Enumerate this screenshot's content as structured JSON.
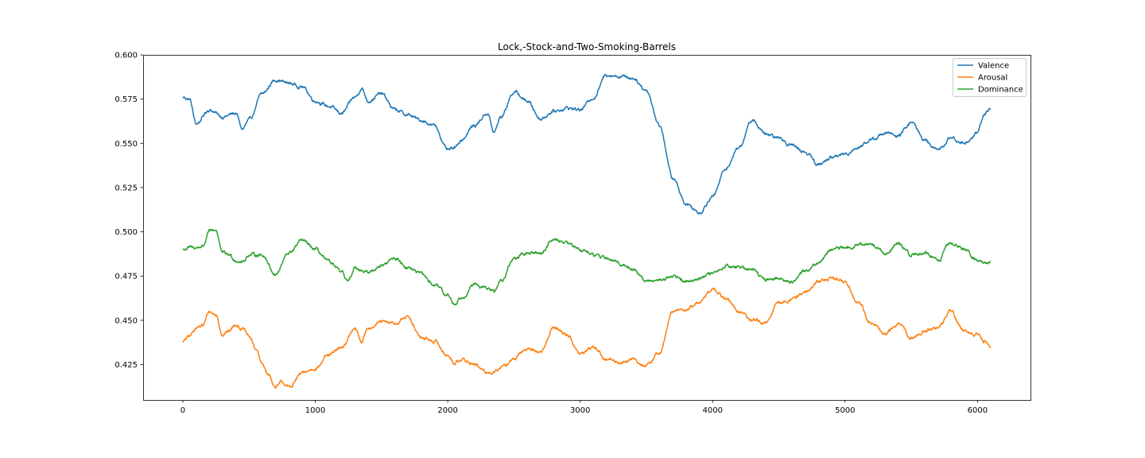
{
  "chart_data": {
    "type": "line",
    "title": "Lock,-Stock-and-Two-Smoking-Barrels",
    "xlabel": "",
    "ylabel": "",
    "xlim": [
      -300,
      6400
    ],
    "ylim": [
      0.405,
      0.6
    ],
    "x_ticks": [
      0,
      1000,
      2000,
      3000,
      4000,
      5000,
      6000
    ],
    "x_tick_labels": [
      "0",
      "1000",
      "2000",
      "3000",
      "4000",
      "5000",
      "6000"
    ],
    "y_ticks": [
      0.425,
      0.45,
      0.475,
      0.5,
      0.525,
      0.55,
      0.575,
      0.6
    ],
    "y_tick_labels": [
      "0.425",
      "0.450",
      "0.475",
      "0.500",
      "0.525",
      "0.550",
      "0.575",
      "0.600"
    ],
    "grid": false,
    "legend_position": "top-right",
    "series": [
      {
        "name": "Valence",
        "color": "#1f77b4",
        "x": [
          0,
          50,
          100,
          200,
          300,
          400,
          450,
          500,
          600,
          700,
          800,
          900,
          1000,
          1100,
          1200,
          1300,
          1350,
          1400,
          1500,
          1600,
          1700,
          1800,
          1900,
          2000,
          2050,
          2100,
          2200,
          2300,
          2350,
          2400,
          2500,
          2600,
          2700,
          2800,
          2900,
          3000,
          3100,
          3200,
          3300,
          3400,
          3500,
          3600,
          3700,
          3800,
          3900,
          4000,
          4100,
          4200,
          4300,
          4400,
          4500,
          4600,
          4700,
          4800,
          4900,
          5000,
          5100,
          5200,
          5300,
          5400,
          5500,
          5600,
          5700,
          5800,
          5900,
          6000,
          6050,
          6100
        ],
        "y": [
          0.576,
          0.575,
          0.561,
          0.569,
          0.565,
          0.567,
          0.558,
          0.563,
          0.578,
          0.586,
          0.584,
          0.582,
          0.574,
          0.571,
          0.567,
          0.576,
          0.581,
          0.574,
          0.578,
          0.569,
          0.566,
          0.563,
          0.56,
          0.546,
          0.547,
          0.552,
          0.56,
          0.567,
          0.556,
          0.565,
          0.579,
          0.574,
          0.564,
          0.568,
          0.57,
          0.569,
          0.576,
          0.589,
          0.588,
          0.587,
          0.58,
          0.56,
          0.53,
          0.516,
          0.511,
          0.52,
          0.536,
          0.548,
          0.563,
          0.555,
          0.553,
          0.549,
          0.545,
          0.538,
          0.542,
          0.544,
          0.548,
          0.552,
          0.556,
          0.554,
          0.562,
          0.552,
          0.546,
          0.553,
          0.55,
          0.556,
          0.566,
          0.57
        ]
      },
      {
        "name": "Arousal",
        "color": "#ff7f0e",
        "x": [
          0,
          50,
          100,
          150,
          200,
          250,
          300,
          350,
          400,
          450,
          500,
          550,
          600,
          650,
          700,
          750,
          800,
          900,
          1000,
          1100,
          1200,
          1300,
          1350,
          1400,
          1500,
          1600,
          1700,
          1800,
          1900,
          2000,
          2050,
          2100,
          2200,
          2300,
          2400,
          2500,
          2600,
          2700,
          2800,
          2900,
          3000,
          3100,
          3200,
          3300,
          3400,
          3500,
          3600,
          3700,
          3800,
          3900,
          4000,
          4100,
          4200,
          4300,
          4400,
          4500,
          4600,
          4700,
          4800,
          4900,
          5000,
          5100,
          5200,
          5300,
          5400,
          5500,
          5600,
          5700,
          5800,
          5900,
          6000,
          6050,
          6100
        ],
        "y": [
          0.438,
          0.441,
          0.446,
          0.447,
          0.455,
          0.453,
          0.442,
          0.444,
          0.448,
          0.445,
          0.441,
          0.434,
          0.425,
          0.419,
          0.412,
          0.415,
          0.412,
          0.42,
          0.423,
          0.43,
          0.435,
          0.445,
          0.438,
          0.446,
          0.449,
          0.448,
          0.452,
          0.44,
          0.438,
          0.43,
          0.426,
          0.428,
          0.425,
          0.42,
          0.423,
          0.428,
          0.434,
          0.432,
          0.446,
          0.442,
          0.431,
          0.435,
          0.428,
          0.426,
          0.428,
          0.424,
          0.432,
          0.455,
          0.456,
          0.46,
          0.468,
          0.462,
          0.455,
          0.45,
          0.448,
          0.46,
          0.462,
          0.466,
          0.472,
          0.474,
          0.472,
          0.46,
          0.448,
          0.442,
          0.448,
          0.44,
          0.444,
          0.446,
          0.455,
          0.443,
          0.442,
          0.438,
          0.435
        ]
      },
      {
        "name": "Dominance",
        "color": "#2ca02c",
        "x": [
          0,
          50,
          100,
          150,
          200,
          250,
          300,
          350,
          400,
          450,
          500,
          600,
          700,
          800,
          900,
          1000,
          1100,
          1200,
          1250,
          1300,
          1400,
          1500,
          1600,
          1700,
          1800,
          1900,
          2000,
          2050,
          2100,
          2200,
          2300,
          2350,
          2400,
          2500,
          2600,
          2700,
          2800,
          2900,
          3000,
          3100,
          3200,
          3300,
          3400,
          3500,
          3600,
          3700,
          3800,
          3900,
          4000,
          4100,
          4200,
          4300,
          4400,
          4500,
          4600,
          4700,
          4800,
          4900,
          5000,
          5100,
          5200,
          5300,
          5400,
          5500,
          5600,
          5700,
          5800,
          5900,
          6000,
          6050,
          6100
        ],
        "y": [
          0.49,
          0.491,
          0.491,
          0.492,
          0.5,
          0.501,
          0.488,
          0.487,
          0.484,
          0.483,
          0.487,
          0.487,
          0.476,
          0.488,
          0.495,
          0.49,
          0.483,
          0.477,
          0.472,
          0.48,
          0.477,
          0.481,
          0.485,
          0.48,
          0.476,
          0.47,
          0.464,
          0.459,
          0.463,
          0.47,
          0.468,
          0.466,
          0.472,
          0.485,
          0.488,
          0.488,
          0.496,
          0.494,
          0.49,
          0.487,
          0.485,
          0.482,
          0.479,
          0.472,
          0.473,
          0.475,
          0.472,
          0.474,
          0.476,
          0.481,
          0.48,
          0.479,
          0.473,
          0.474,
          0.472,
          0.478,
          0.483,
          0.49,
          0.491,
          0.493,
          0.493,
          0.488,
          0.493,
          0.487,
          0.488,
          0.484,
          0.494,
          0.49,
          0.484,
          0.482,
          0.483
        ]
      }
    ]
  }
}
